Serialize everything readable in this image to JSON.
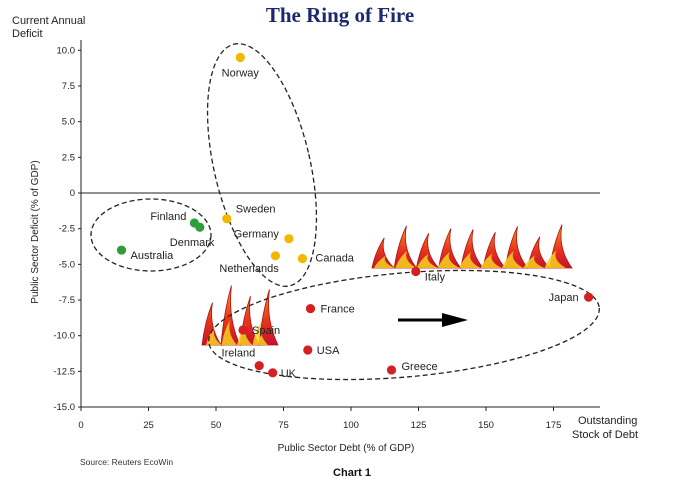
{
  "title": "The Ring of Fire",
  "source": "Source: Reuters EcoWin",
  "caption": "Chart 1",
  "chart_data": {
    "type": "scatter",
    "title": "The Ring of Fire",
    "xlabel": "Public Sector Debt (% of GDP)",
    "ylabel": "Public Sector Deficit (% of GDP)",
    "x_corner_label": [
      "Outstanding",
      "Stock of Debt"
    ],
    "y_corner_label": [
      "Current Annual",
      "Deficit"
    ],
    "xlim": [
      0,
      190
    ],
    "ylim": [
      -15.0,
      11.0
    ],
    "xticks": [
      0,
      25,
      50,
      75,
      100,
      125,
      150,
      175
    ],
    "yticks": [
      -15.0,
      -12.5,
      -10.0,
      -7.5,
      -5.0,
      -2.5,
      0,
      2.5,
      5.0,
      7.5,
      10.0
    ],
    "xtick_labels": [
      "0",
      "25",
      "50",
      "75",
      "100",
      "125",
      "150",
      "175"
    ],
    "ytick_labels": [
      "-15.0",
      "-12.5",
      "-10.0",
      "-7.5",
      "-5.0",
      "-2.5",
      "0",
      "2.5",
      "5.0",
      "7.5",
      "10.0"
    ],
    "colors": {
      "green": "#2e9e3a",
      "yellow": "#f2b800",
      "red": "#d42020",
      "arrow": "#000000"
    },
    "points": [
      {
        "name": "Norway",
        "x": 59,
        "y": 9.5,
        "color": "yellow"
      },
      {
        "name": "Finland",
        "x": 42,
        "y": -2.1,
        "color": "green"
      },
      {
        "name": "Denmark",
        "x": 44,
        "y": -2.4,
        "color": "green"
      },
      {
        "name": "Australia",
        "x": 15,
        "y": -4.0,
        "color": "green"
      },
      {
        "name": "Sweden",
        "x": 54,
        "y": -1.8,
        "color": "yellow"
      },
      {
        "name": "Germany",
        "x": 77,
        "y": -3.2,
        "color": "yellow"
      },
      {
        "name": "Netherlands",
        "x": 72,
        "y": -4.4,
        "color": "yellow"
      },
      {
        "name": "Canada",
        "x": 82,
        "y": -4.6,
        "color": "yellow"
      },
      {
        "name": "Italy",
        "x": 124,
        "y": -5.5,
        "color": "red"
      },
      {
        "name": "Japan",
        "x": 188,
        "y": -7.3,
        "color": "red"
      },
      {
        "name": "France",
        "x": 85,
        "y": -8.1,
        "color": "red"
      },
      {
        "name": "Spain",
        "x": 60,
        "y": -9.6,
        "color": "red"
      },
      {
        "name": "USA",
        "x": 84,
        "y": -11.0,
        "color": "red"
      },
      {
        "name": "Ireland",
        "x": 66,
        "y": -12.1,
        "color": "red"
      },
      {
        "name": "UK",
        "x": 71,
        "y": -12.6,
        "color": "red"
      },
      {
        "name": "Greece",
        "x": 115,
        "y": -12.4,
        "color": "red"
      }
    ]
  }
}
